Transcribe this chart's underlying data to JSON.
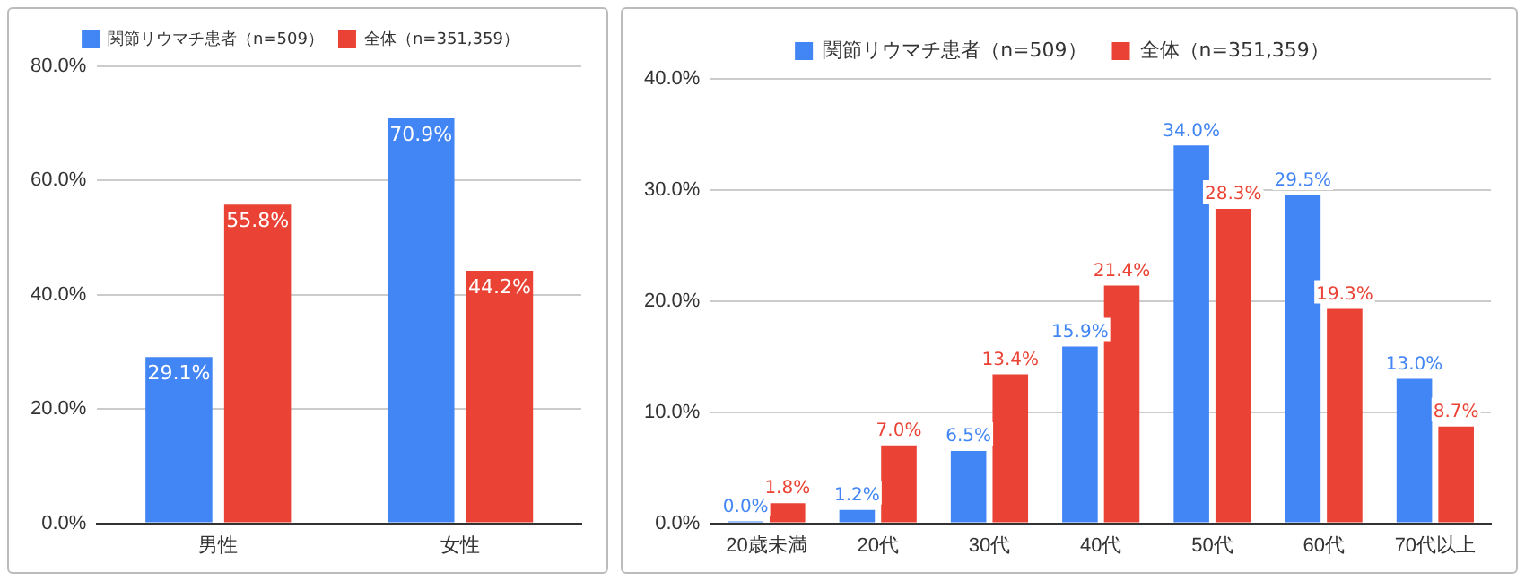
{
  "chart_data": [
    {
      "type": "bar",
      "categories": [
        "男性",
        "女性"
      ],
      "series": [
        {
          "name": "関節リウマチ患者（n=509）",
          "color": "#4285f4",
          "values": [
            29.1,
            70.9
          ],
          "value_labels": [
            "29.1%",
            "70.9%"
          ]
        },
        {
          "name": "全体（n=351,359）",
          "color": "#ea4335",
          "values": [
            55.8,
            44.2
          ],
          "value_labels": [
            "55.8%",
            "44.2%"
          ]
        }
      ],
      "ylim": [
        0,
        80
      ],
      "yticks": [
        {
          "value": 0,
          "label": "0.0%"
        },
        {
          "value": 20,
          "label": "20.0%"
        },
        {
          "value": 40,
          "label": "40.0%"
        },
        {
          "value": 60,
          "label": "60.0%"
        },
        {
          "value": 80,
          "label": "80.0%"
        }
      ],
      "grid": "y",
      "legend": "top"
    },
    {
      "type": "bar",
      "categories": [
        "20歳未満",
        "20代",
        "30代",
        "40代",
        "50代",
        "60代",
        "70代以上"
      ],
      "series": [
        {
          "name": "関節リウマチ患者（n=509）",
          "color": "#4285f4",
          "values": [
            0.0,
            1.2,
            6.5,
            15.9,
            34.0,
            29.5,
            13.0
          ],
          "value_labels": [
            "0.0%",
            "1.2%",
            "6.5%",
            "15.9%",
            "34.0%",
            "29.5%",
            "13.0%"
          ]
        },
        {
          "name": "全体（n=351,359）",
          "color": "#ea4335",
          "values": [
            1.8,
            7.0,
            13.4,
            21.4,
            28.3,
            19.3,
            8.7
          ],
          "value_labels": [
            "1.8%",
            "7.0%",
            "13.4%",
            "21.4%",
            "28.3%",
            "19.3%",
            "8.7%"
          ]
        }
      ],
      "ylim": [
        0,
        40
      ],
      "yticks": [
        {
          "value": 0,
          "label": "0.0%"
        },
        {
          "value": 10,
          "label": "10.0%"
        },
        {
          "value": 20,
          "label": "20.0%"
        },
        {
          "value": 30,
          "label": "30.0%"
        },
        {
          "value": 40,
          "label": "40.0%"
        }
      ],
      "grid": "y",
      "legend": "top"
    }
  ]
}
